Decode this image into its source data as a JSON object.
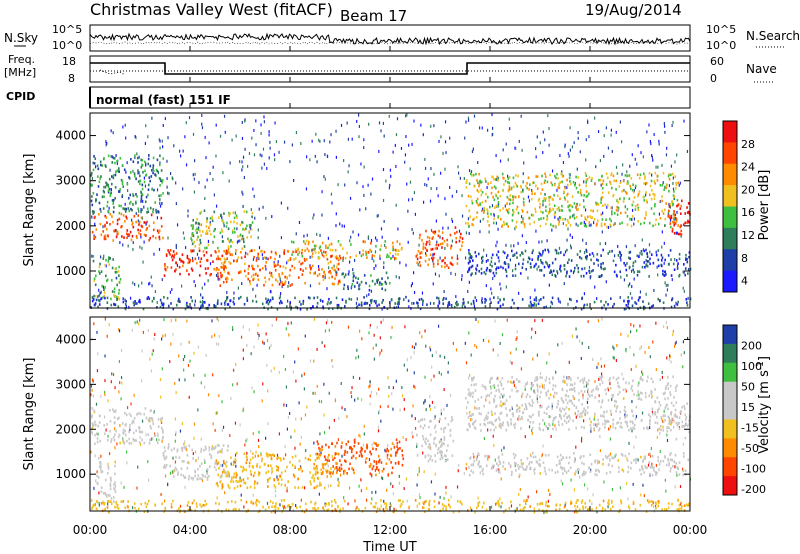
{
  "header": {
    "station": "Christmas Valley West (fitACF)",
    "beam": "Beam 17",
    "date": "19/Aug/2014"
  },
  "noise_panel": {
    "left_label": "N.Sky",
    "left_ticks": [
      "10^5",
      "10^0"
    ],
    "right_ticks": [
      "10^5",
      "10^0"
    ],
    "right_label": "N.Search"
  },
  "freq_panel": {
    "left_label_1": "Freq.",
    "left_label_2": "[MHz]",
    "left_ticks": [
      "18",
      "8"
    ],
    "right_ticks": [
      "60",
      "0"
    ],
    "right_label": "Nave"
  },
  "cpid": {
    "label": "CPID",
    "text": "normal (fast) 151 IF"
  },
  "colors": {
    "power_scale": [
      "#1a1aff",
      "#1f3fa8",
      "#2e7d5b",
      "#3fbf3f",
      "#f0c020",
      "#ff8c00",
      "#ff4500",
      "#ee1010"
    ],
    "velocity_scale": [
      "#ee1010",
      "#ff4500",
      "#ff8c00",
      "#f0c020",
      "#c8c8c8",
      "#c8c8c8",
      "#3fbf3f",
      "#2e7d5b",
      "#1f3fa8"
    ]
  },
  "chart_data": [
    {
      "type": "heatmap",
      "panel": "power",
      "ylabel": "Slant Range [km]",
      "ylim": [
        180,
        4500
      ],
      "xlim": [
        0,
        24
      ],
      "y_ticks": [
        "1000",
        "2000",
        "3000",
        "4000"
      ],
      "colorbar": {
        "label": "Power [dB]",
        "ticks": [
          "28",
          "24",
          "20",
          "16",
          "12",
          "8",
          "4"
        ],
        "range": [
          0,
          30
        ]
      },
      "scatter_regions": [
        {
          "t0": 0.0,
          "t1": 2.9,
          "r0": 1700,
          "r1": 2300,
          "value": 24
        },
        {
          "t0": 0.0,
          "t1": 2.9,
          "r0": 2300,
          "r1": 3600,
          "value": 10
        },
        {
          "t0": 0.1,
          "t1": 1.2,
          "r0": 400,
          "r1": 1400,
          "value": 12
        },
        {
          "t0": 2.9,
          "t1": 5.5,
          "r0": 900,
          "r1": 1500,
          "value": 26
        },
        {
          "t0": 4.0,
          "t1": 6.5,
          "r0": 1500,
          "r1": 2400,
          "value": 14
        },
        {
          "t0": 5.0,
          "t1": 10.0,
          "r0": 700,
          "r1": 1500,
          "value": 22
        },
        {
          "t0": 8.0,
          "t1": 12.5,
          "r0": 1300,
          "r1": 1700,
          "value": 18
        },
        {
          "t0": 10.0,
          "t1": 12.0,
          "r0": 600,
          "r1": 1000,
          "value": 8
        },
        {
          "t0": 13.0,
          "t1": 14.9,
          "r0": 1100,
          "r1": 2000,
          "value": 24
        },
        {
          "t0": 15.0,
          "t1": 23.5,
          "r0": 2000,
          "r1": 3200,
          "value": 16
        },
        {
          "t0": 15.0,
          "t1": 24.0,
          "r0": 900,
          "r1": 1500,
          "value": 6
        },
        {
          "t0": 23.0,
          "t1": 24.0,
          "r0": 1800,
          "r1": 2600,
          "value": 26
        },
        {
          "t0": 0.0,
          "t1": 24.0,
          "r0": 180,
          "r1": 450,
          "value": 6
        }
      ]
    },
    {
      "type": "heatmap",
      "panel": "velocity",
      "ylabel": "Slant Range [km]",
      "xlabel": "Time UT",
      "ylim": [
        180,
        4500
      ],
      "xlim": [
        0,
        24
      ],
      "y_ticks": [
        "1000",
        "2000",
        "3000",
        "4000"
      ],
      "x_ticks": [
        "00:00",
        "04:00",
        "08:00",
        "12:00",
        "16:00",
        "20:00",
        "00:00"
      ],
      "colorbar": {
        "label": "Velocity [m s",
        "ticks": [
          "200",
          "100",
          "50",
          "15",
          "-15",
          "-50",
          "-100",
          "-200"
        ],
        "range": [
          -250,
          250
        ]
      },
      "scatter_regions": [
        {
          "t0": 0.0,
          "t1": 2.9,
          "r0": 1700,
          "r1": 2500,
          "value": 0
        },
        {
          "t0": 0.2,
          "t1": 1.0,
          "r0": 400,
          "r1": 1400,
          "value": 0
        },
        {
          "t0": 2.9,
          "t1": 5.5,
          "r0": 900,
          "r1": 1700,
          "value": 0
        },
        {
          "t0": 5.0,
          "t1": 10.0,
          "r0": 700,
          "r1": 1500,
          "value": -70
        },
        {
          "t0": 9.0,
          "t1": 12.5,
          "r0": 1000,
          "r1": 1800,
          "value": -150
        },
        {
          "t0": 13.0,
          "t1": 14.5,
          "r0": 1300,
          "r1": 2300,
          "value": 40
        },
        {
          "t0": 15.0,
          "t1": 23.5,
          "r0": 2000,
          "r1": 3200,
          "value": 0
        },
        {
          "t0": 15.0,
          "t1": 24.0,
          "r0": 1000,
          "r1": 1500,
          "value": 0
        },
        {
          "t0": 23.0,
          "t1": 24.0,
          "r0": 1800,
          "r1": 2600,
          "value": 40
        },
        {
          "t0": 0.0,
          "t1": 24.0,
          "r0": 180,
          "r1": 450,
          "value": -60
        }
      ]
    }
  ]
}
